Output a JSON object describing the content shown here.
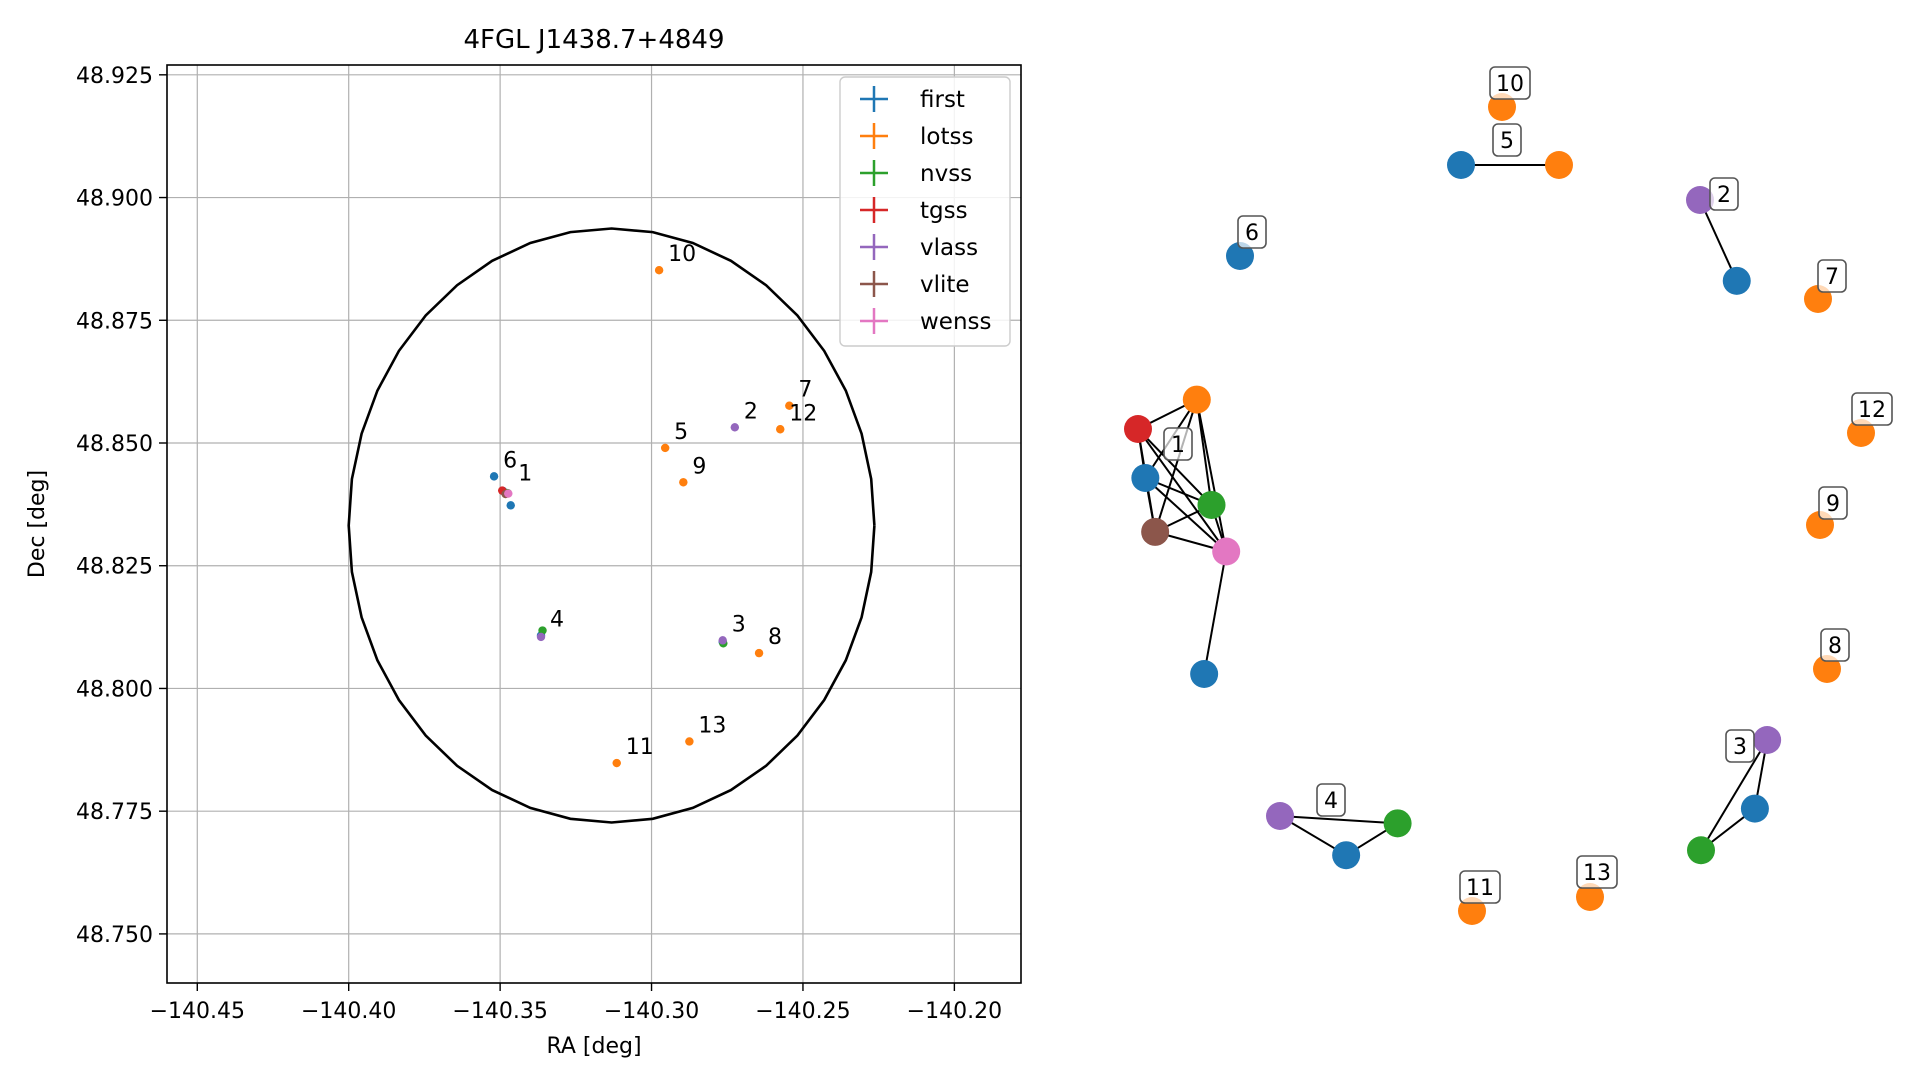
{
  "chart_data": [
    {
      "type": "scatter",
      "title": "4FGL J1438.7+4849",
      "xlabel": "RA [deg]",
      "ylabel": "Dec [deg]",
      "xlim": [
        -140.46,
        -140.178
      ],
      "ylim": [
        48.74,
        48.927
      ],
      "x_ticks": [
        -140.45,
        -140.4,
        -140.35,
        -140.3,
        -140.25,
        -140.2
      ],
      "x_tick_labels": [
        "−140.45",
        "−140.40",
        "−140.35",
        "−140.30",
        "−140.25",
        "−140.20"
      ],
      "y_ticks": [
        48.75,
        48.775,
        48.8,
        48.825,
        48.85,
        48.875,
        48.9,
        48.925
      ],
      "y_tick_labels": [
        "48.750",
        "48.775",
        "48.800",
        "48.825",
        "48.850",
        "48.875",
        "48.900",
        "48.925"
      ],
      "grid": true,
      "legend_position": "top-right",
      "series": [
        {
          "name": "first",
          "color": "#1f77b4",
          "points": [
            [
              -140.352,
              48.8432
            ],
            [
              -140.3465,
              48.8373
            ],
            [
              -140.349,
              48.8402
            ],
            [
              -140.3365,
              48.8108
            ],
            [
              -140.2765,
              48.8095
            ]
          ]
        },
        {
          "name": "lotss",
          "color": "#ff7f0e",
          "points": [
            [
              -140.348,
              48.8398
            ],
            [
              -140.2975,
              48.8852
            ],
            [
              -140.2955,
              48.849
            ],
            [
              -140.2545,
              48.8576
            ],
            [
              -140.2895,
              48.842
            ],
            [
              -140.2645,
              48.8072
            ],
            [
              -140.2575,
              48.8528
            ],
            [
              -140.3115,
              48.7848
            ],
            [
              -140.2875,
              48.7892
            ]
          ]
        },
        {
          "name": "nvss",
          "color": "#2ca02c",
          "points": [
            [
              -140.3475,
              48.8398
            ],
            [
              -140.336,
              48.8118
            ],
            [
              -140.2763,
              48.8092
            ]
          ]
        },
        {
          "name": "tgss",
          "color": "#d62728",
          "points": [
            [
              -140.3493,
              48.8403
            ]
          ]
        },
        {
          "name": "vlass",
          "color": "#9467bd",
          "points": [
            [
              -140.2725,
              48.8532
            ],
            [
              -140.3365,
              48.8105
            ],
            [
              -140.2765,
              48.8098
            ]
          ]
        },
        {
          "name": "vlite",
          "color": "#8c564b",
          "points": [
            [
              -140.3482,
              48.8396
            ]
          ]
        },
        {
          "name": "wenss",
          "color": "#e377c2",
          "points": [
            [
              -140.3473,
              48.8397
            ]
          ]
        }
      ],
      "annotations": [
        {
          "text": "1",
          "x": -140.347,
          "y": 48.8405
        },
        {
          "text": "2",
          "x": -140.2725,
          "y": 48.8532
        },
        {
          "text": "3",
          "x": -140.2765,
          "y": 48.8098
        },
        {
          "text": "4",
          "x": -140.3365,
          "y": 48.8108
        },
        {
          "text": "5",
          "x": -140.2955,
          "y": 48.849
        },
        {
          "text": "6",
          "x": -140.352,
          "y": 48.8432
        },
        {
          "text": "7",
          "x": -140.2545,
          "y": 48.8576
        },
        {
          "text": "8",
          "x": -140.2645,
          "y": 48.8072
        },
        {
          "text": "9",
          "x": -140.2895,
          "y": 48.842
        },
        {
          "text": "10",
          "x": -140.2975,
          "y": 48.8852
        },
        {
          "text": "11",
          "x": -140.3115,
          "y": 48.7848
        },
        {
          "text": "12",
          "x": -140.2575,
          "y": 48.8528
        },
        {
          "text": "13",
          "x": -140.2875,
          "y": 48.7892
        }
      ],
      "ellipse": {
        "center": [
          -140.3132,
          48.8332
        ],
        "semi_axis_ra": 0.0868,
        "semi_axis_dec": 0.0605
      }
    },
    {
      "type": "network",
      "series_colors": {
        "first": "#1f77b4",
        "lotss": "#ff7f0e",
        "nvss": "#2ca02c",
        "tgss": "#d62728",
        "vlass": "#9467bd",
        "vlite": "#8c564b",
        "wenss": "#e377c2"
      },
      "groups": [
        {
          "label": "1",
          "nodes": [
            {
              "series": "tgss",
              "pos": [
                0.0,
                0.0
              ]
            },
            {
              "series": "lotss",
              "pos": [
                0.24,
                -0.12
              ]
            },
            {
              "series": "first",
              "pos": [
                0.03,
                0.2
              ]
            },
            {
              "series": "nvss",
              "pos": [
                0.3,
                0.31
              ]
            },
            {
              "series": "vlite",
              "pos": [
                0.07,
                0.42
              ]
            },
            {
              "series": "wenss",
              "pos": [
                0.36,
                0.5
              ]
            },
            {
              "series": "first",
              "pos": [
                0.27,
                1.0
              ]
            }
          ],
          "edges": [
            [
              0,
              1
            ],
            [
              0,
              2
            ],
            [
              0,
              3
            ],
            [
              0,
              4
            ],
            [
              0,
              5
            ],
            [
              1,
              2
            ],
            [
              1,
              3
            ],
            [
              1,
              4
            ],
            [
              1,
              5
            ],
            [
              2,
              3
            ],
            [
              2,
              4
            ],
            [
              2,
              5
            ],
            [
              3,
              4
            ],
            [
              3,
              5
            ],
            [
              4,
              5
            ],
            [
              5,
              6
            ]
          ]
        },
        {
          "label": "2",
          "nodes": [
            {
              "series": "vlass",
              "pos": [
                0.0,
                0.0
              ]
            },
            {
              "series": "first",
              "pos": [
                0.15,
                0.33
              ]
            }
          ],
          "edges": [
            [
              0,
              1
            ]
          ]
        },
        {
          "label": "3",
          "nodes": [
            {
              "series": "vlass",
              "pos": [
                0.27,
                0.0
              ]
            },
            {
              "series": "first",
              "pos": [
                0.22,
                0.28
              ]
            },
            {
              "series": "nvss",
              "pos": [
                0.0,
                0.45
              ]
            }
          ],
          "edges": [
            [
              0,
              1
            ],
            [
              0,
              2
            ],
            [
              1,
              2
            ]
          ]
        },
        {
          "label": "4",
          "nodes": [
            {
              "series": "vlass",
              "pos": [
                0.0,
                0.0
              ]
            },
            {
              "series": "first",
              "pos": [
                0.27,
                0.16
              ]
            },
            {
              "series": "nvss",
              "pos": [
                0.48,
                0.03
              ]
            }
          ],
          "edges": [
            [
              0,
              1
            ],
            [
              0,
              2
            ],
            [
              1,
              2
            ]
          ]
        },
        {
          "label": "5",
          "nodes": [
            {
              "series": "first",
              "pos": [
                0.0,
                0.0
              ]
            },
            {
              "series": "lotss",
              "pos": [
                0.4,
                0.0
              ]
            }
          ],
          "edges": [
            [
              0,
              1
            ]
          ]
        },
        {
          "label": "6",
          "nodes": [
            {
              "series": "first",
              "pos": [
                0.0,
                0.0
              ]
            }
          ],
          "edges": []
        },
        {
          "label": "7",
          "nodes": [
            {
              "series": "lotss",
              "pos": [
                0.0,
                0.0
              ]
            }
          ],
          "edges": []
        },
        {
          "label": "8",
          "nodes": [
            {
              "series": "lotss",
              "pos": [
                0.0,
                0.0
              ]
            }
          ],
          "edges": []
        },
        {
          "label": "9",
          "nodes": [
            {
              "series": "lotss",
              "pos": [
                0.0,
                0.0
              ]
            }
          ],
          "edges": []
        },
        {
          "label": "10",
          "nodes": [
            {
              "series": "lotss",
              "pos": [
                0.0,
                0.0
              ]
            }
          ],
          "edges": []
        },
        {
          "label": "11",
          "nodes": [
            {
              "series": "lotss",
              "pos": [
                0.0,
                0.0
              ]
            }
          ],
          "edges": []
        },
        {
          "label": "12",
          "nodes": [
            {
              "series": "lotss",
              "pos": [
                0.0,
                0.0
              ]
            }
          ],
          "edges": []
        },
        {
          "label": "13",
          "nodes": [
            {
              "series": "lotss",
              "pos": [
                0.0,
                0.0
              ]
            }
          ],
          "edges": []
        }
      ]
    }
  ]
}
